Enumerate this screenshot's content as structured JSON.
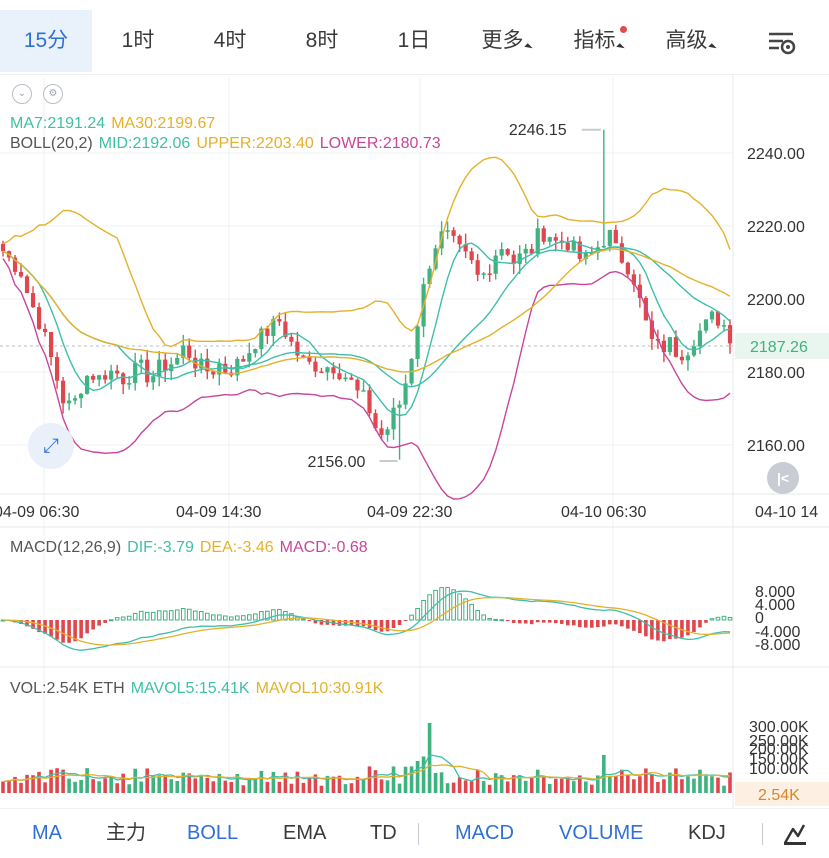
{
  "tabs": [
    {
      "label": "15分",
      "active": true
    },
    {
      "label": "1时"
    },
    {
      "label": "4时"
    },
    {
      "label": "8时"
    },
    {
      "label": "1日"
    },
    {
      "label": "更多",
      "dropdown": true
    },
    {
      "label": "指标",
      "dot": true
    },
    {
      "label": "高级",
      "dropdown": true
    }
  ],
  "icons": {
    "settings": "chart-settings-icon",
    "expand": "expand-arrows-icon",
    "back": "scroll-to-latest-icon",
    "draw": "draw-line-icon"
  },
  "legend": {
    "ma7": "MA7:2191.24",
    "ma30": "MA30:2199.67",
    "boll": "BOLL(20,2)",
    "mid": "MID:2192.06",
    "upper": "UPPER:2203.40",
    "lower": "LOWER:2180.73"
  },
  "price_axis": {
    "ticks": [
      "2240.00",
      "2220.00",
      "2200.00",
      "2180.00",
      "2160.00"
    ],
    "current": "2187.26"
  },
  "annotations": {
    "high": "2246.15",
    "low": "2156.00"
  },
  "time_axis": [
    "04-09 06:30",
    "04-09 14:30",
    "04-09 22:30",
    "04-10 06:30",
    "04-10 14"
  ],
  "macd": {
    "label": "MACD(12,26,9)",
    "dif": "DIF:-3.79",
    "dea": "DEA:-3.46",
    "macd": "MACD:-0.68",
    "ticks": [
      "8.000",
      "4.000",
      "0",
      "-4.000",
      "-8.000"
    ]
  },
  "vol": {
    "label": "VOL:2.54K ETH",
    "mavol5": "MAVOL5:15.41K",
    "mavol10": "MAVOL10:30.91K",
    "ticks": [
      "300.00K",
      "250.00K",
      "200.00K",
      "150.00K",
      "100.00K"
    ],
    "current": "2.54K"
  },
  "bottom_tabs": [
    "MA",
    "主力",
    "BOLL",
    "EMA",
    "TD",
    "MACD",
    "VOLUME",
    "KDJ"
  ],
  "colors": {
    "up": "#3fb27f",
    "down": "#e0474c",
    "ma7": "#3fbfa8",
    "ma30": "#e3b12b",
    "mid": "#3fbfa8",
    "upper": "#e3b12b",
    "lower": "#c8459a",
    "accent": "#2f6fd6"
  },
  "chart_data": {
    "type": "candlestick",
    "y_range": [
      2150,
      2250
    ],
    "high": 2246.15,
    "low": 2156.0,
    "last": 2187.26
  }
}
